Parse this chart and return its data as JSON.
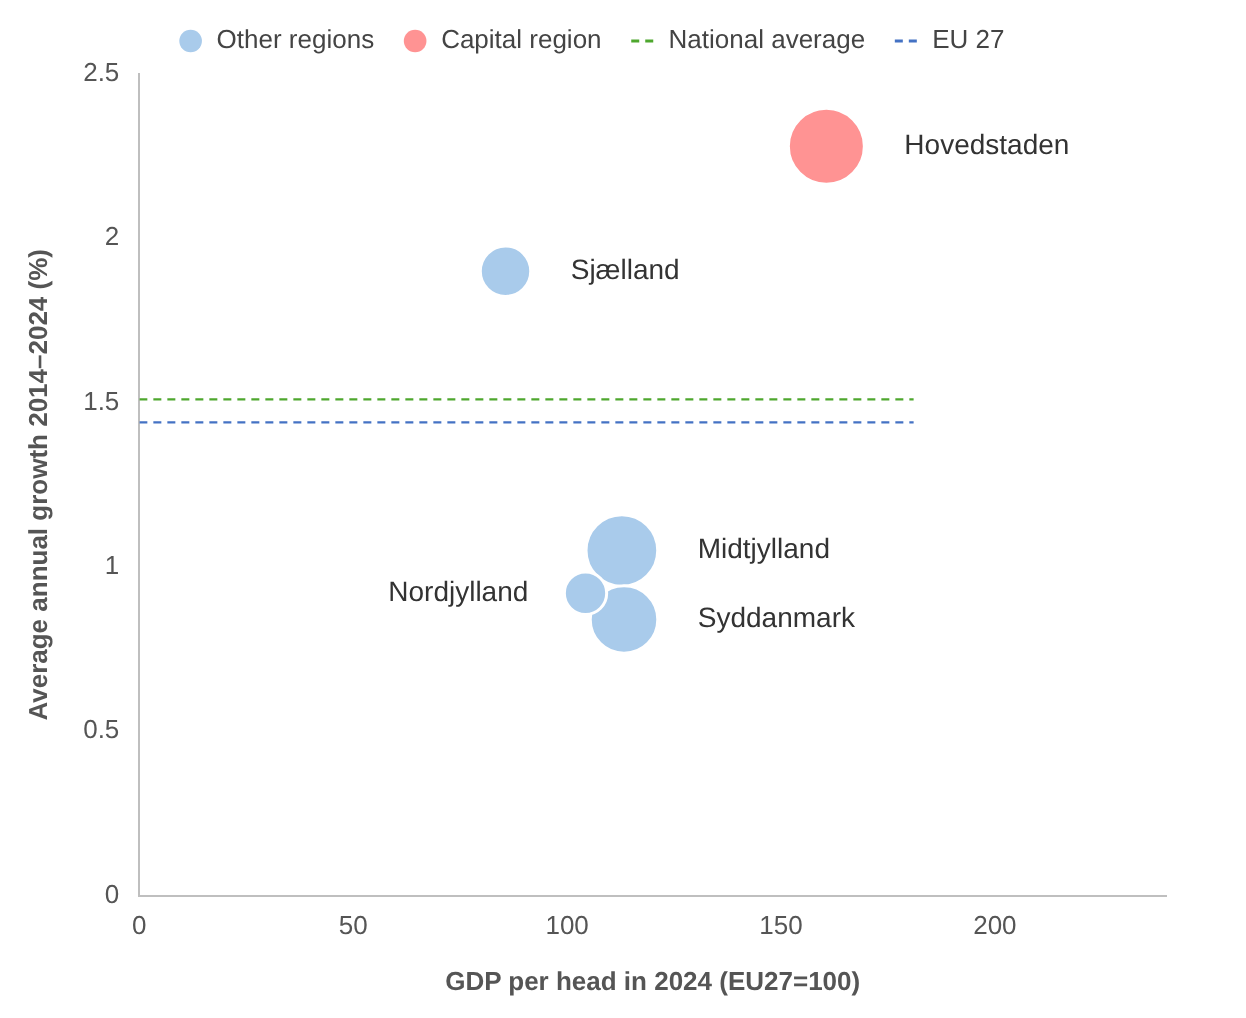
{
  "chart_data": {
    "type": "bubble",
    "xlabel": "GDP per head in 2024 (EU27=100)",
    "ylabel": "Average annual growth 2014–2024 (%)",
    "xlim": [
      0,
      240
    ],
    "xticks": [
      0,
      50,
      100,
      150,
      200
    ],
    "ylim": [
      0,
      2.5
    ],
    "yticks": [
      0,
      0.5,
      1,
      1.5,
      2,
      2.5
    ],
    "grid": false,
    "legend": "top",
    "series": [
      {
        "name": "Other regions",
        "type": "bubble",
        "color": "#a9cbeb",
        "x": [
          85.6,
          112.8,
          113.3,
          104.3
        ],
        "values": [
          1.9,
          1.05,
          0.84,
          0.92
        ],
        "sizes": [
          0.44,
          0.89,
          0.79,
          0.31
        ]
      },
      {
        "name": "Capital region",
        "type": "bubble",
        "color": "#ff9393",
        "x": [
          160.6
        ],
        "values": [
          2.28
        ],
        "sizes": [
          1
        ]
      },
      {
        "name": "National average",
        "type": "line",
        "color": "#4ea72e",
        "line_style": "dashed",
        "x": [
          0,
          181
        ],
        "values": [
          1.51,
          1.51
        ]
      },
      {
        "name": "EU 27",
        "type": "line",
        "color": "#4472c4",
        "line_style": "dashed",
        "x": [
          0,
          181
        ],
        "values": [
          1.44,
          1.44
        ]
      }
    ],
    "annotations": [
      {
        "text": "Hovedstaden",
        "x": 160.6,
        "y": 2.28
      },
      {
        "text": "Sjælland",
        "x": 85.6,
        "y": 1.9
      },
      {
        "text": "Midtjylland",
        "x": 112.8,
        "y": 1.05
      },
      {
        "text": "Syddanmark",
        "x": 113.3,
        "y": 0.84
      },
      {
        "text": "Nordjylland",
        "x": 104.3,
        "y": 0.92
      }
    ]
  }
}
